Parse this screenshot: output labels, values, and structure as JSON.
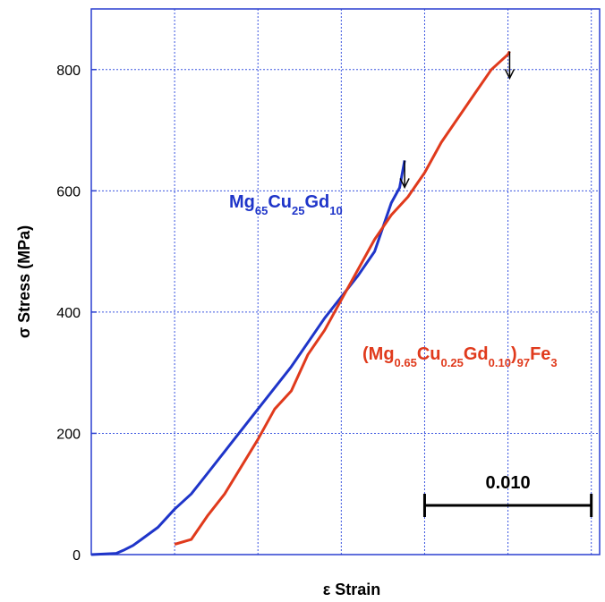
{
  "chart_data": {
    "type": "line",
    "xlabel": "ε Strain",
    "ylabel": "σ Stress (MPa)",
    "ylim": [
      0,
      900
    ],
    "yticks": [
      0,
      200,
      400,
      600,
      800
    ],
    "y_tick_labels": [
      "0",
      "200",
      "400",
      "600",
      "800"
    ],
    "xlim": [
      0,
      0.0305
    ],
    "x_grid_step": 0.005,
    "grid": true,
    "scale_bar": {
      "label": "0.010",
      "from": 0.02,
      "to": 0.03
    },
    "series": [
      {
        "name": "Mg65Cu25Gd10",
        "label_parts": [
          {
            "t": "Mg",
            "sub": false
          },
          {
            "t": "65",
            "sub": true
          },
          {
            "t": "Cu",
            "sub": false
          },
          {
            "t": "25",
            "sub": true
          },
          {
            "t": "Gd",
            "sub": false
          },
          {
            "t": "10",
            "sub": true
          }
        ],
        "color": "#1f35c9",
        "x": [
          0,
          0.0015,
          0.002,
          0.0025,
          0.003,
          0.004,
          0.005,
          0.006,
          0.007,
          0.008,
          0.009,
          0.01,
          0.011,
          0.012,
          0.013,
          0.014,
          0.015,
          0.016,
          0.017,
          0.0175,
          0.018,
          0.0185
        ],
        "y": [
          0,
          2,
          8,
          15,
          25,
          45,
          75,
          100,
          135,
          170,
          205,
          240,
          275,
          310,
          350,
          390,
          425,
          460,
          500,
          540,
          580,
          605
        ],
        "fracture": {
          "x": 0.0188,
          "y": 650
        }
      },
      {
        "name": "(Mg0.65Cu0.25Gd0.10)97Fe3",
        "label_parts": [
          {
            "t": "(Mg",
            "sub": false
          },
          {
            "t": "0.65",
            "sub": true
          },
          {
            "t": "Cu",
            "sub": false
          },
          {
            "t": "0.25",
            "sub": true
          },
          {
            "t": "Gd",
            "sub": false
          },
          {
            "t": "0.10",
            "sub": true
          },
          {
            "t": ")",
            "sub": false
          },
          {
            "t": "97",
            "sub": true
          },
          {
            "t": "Fe",
            "sub": false
          },
          {
            "t": "3",
            "sub": true
          }
        ],
        "color": "#e03a1c",
        "x": [
          0.005,
          0.006,
          0.007,
          0.008,
          0.009,
          0.01,
          0.011,
          0.012,
          0.013,
          0.014,
          0.015,
          0.016,
          0.017,
          0.018,
          0.019,
          0.02,
          0.021,
          0.022,
          0.023,
          0.024,
          0.025
        ],
        "y": [
          17,
          25,
          65,
          100,
          145,
          190,
          240,
          270,
          330,
          370,
          420,
          470,
          520,
          560,
          590,
          630,
          680,
          720,
          760,
          800,
          825
        ],
        "fracture": {
          "x": 0.0251,
          "y": 830
        }
      }
    ]
  }
}
